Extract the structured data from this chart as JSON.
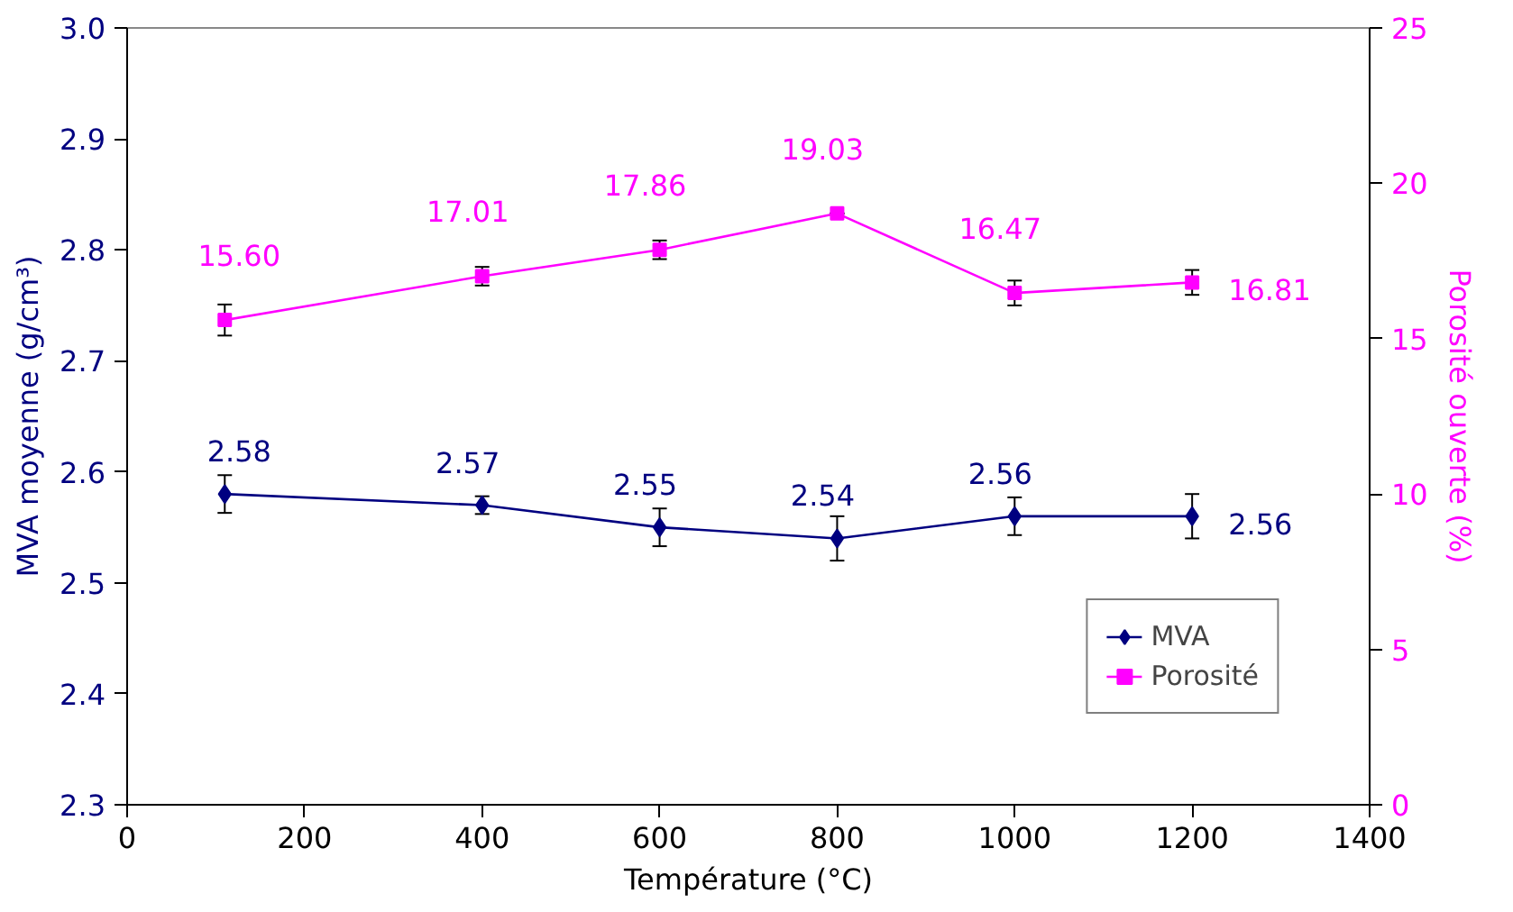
{
  "chart_data": {
    "type": "line",
    "xlabel": "Température (°C)",
    "ylabel": "MVA moyenne (g/cm³)",
    "y2label": "Porosité ouverte (%)",
    "x": [
      110,
      400,
      600,
      800,
      1000,
      1200
    ],
    "series": [
      {
        "name": "MVA",
        "color": "#000080",
        "marker": "diamond",
        "values": [
          2.58,
          2.57,
          2.55,
          2.54,
          2.56,
          2.56
        ],
        "errors": [
          0.017,
          0.008,
          0.017,
          0.02,
          0.017,
          0.02
        ],
        "value_labels": [
          "2.58",
          "2.57",
          "2.55",
          "2.54",
          "2.56",
          "2.56"
        ]
      },
      {
        "name": "Porosité",
        "color": "#ff00ff",
        "marker": "square",
        "axis": "y2",
        "values": [
          15.6,
          17.01,
          17.86,
          19.03,
          16.47,
          16.81
        ],
        "errors": [
          0.5,
          0.3,
          0.3,
          null,
          0.4,
          0.4
        ],
        "value_labels": [
          "15.60",
          "17.01",
          "17.86",
          "19.03",
          "16.47",
          "16.81"
        ]
      }
    ],
    "xlim": [
      0,
      1400
    ],
    "xticks": [
      0,
      200,
      400,
      600,
      800,
      1000,
      1200,
      1400
    ],
    "ylim": [
      2.3,
      3.0
    ],
    "yticks": [
      {
        "value": 2.3,
        "label": "2.3"
      },
      {
        "value": 2.4,
        "label": "2.4"
      },
      {
        "value": 2.5,
        "label": "2.5"
      },
      {
        "value": 2.6,
        "label": "2.6"
      },
      {
        "value": 2.7,
        "label": "2.7"
      },
      {
        "value": 2.8,
        "label": "2.8"
      },
      {
        "value": 2.9,
        "label": "2.9"
      },
      {
        "value": 3.0,
        "label": "3.0"
      }
    ],
    "y2lim": [
      0,
      25
    ],
    "y2ticks": [
      0,
      5,
      10,
      15,
      20,
      25
    ],
    "legend": "bottom right",
    "grid": false
  }
}
